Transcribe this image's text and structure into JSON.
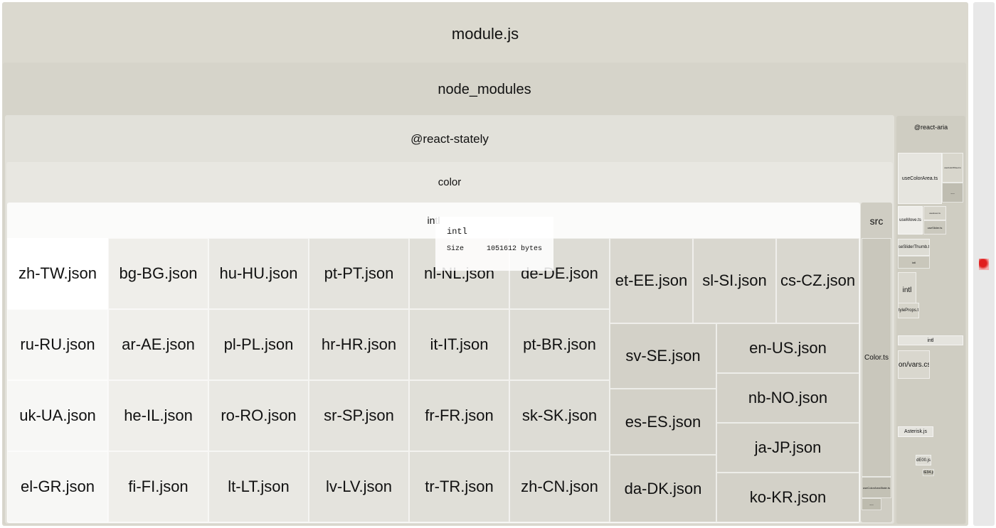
{
  "root": {
    "label": "module.js"
  },
  "node_modules": {
    "label": "node_modules"
  },
  "react_stately": {
    "label": "@react-stately"
  },
  "color": {
    "label": "color"
  },
  "intl": {
    "label": "intl",
    "files": [
      "zh-TW.json",
      "bg-BG.json",
      "hu-HU.json",
      "pt-PT.json",
      "nl-NL.json",
      "de-DE.json",
      "ru-RU.json",
      "ar-AE.json",
      "pl-PL.json",
      "hr-HR.json",
      "it-IT.json",
      "pt-BR.json",
      "uk-UA.json",
      "he-IL.json",
      "ro-RO.json",
      "sr-SP.json",
      "fr-FR.json",
      "sk-SK.json",
      "el-GR.json",
      "fi-FI.json",
      "lt-LT.json",
      "lv-LV.json",
      "tr-TR.json",
      "zh-CN.json",
      "et-EE.json",
      "sl-SI.json",
      "cs-CZ.json",
      "sv-SE.json",
      "es-ES.json",
      "da-DK.json",
      "en-US.json",
      "nb-NO.json",
      "ja-JP.json",
      "ko-KR.json"
    ]
  },
  "src": {
    "label": "src",
    "color_ts": "Color.ts",
    "state": "useColorAreaState.ts",
    "more": "..."
  },
  "react_aria": {
    "label": "@react-aria",
    "items": [
      "useColorArea.ts",
      "useColorWheel.ts",
      "useMove.ts",
      "useHover.ts",
      "useSlider.ts",
      "useSliderThumb.ts",
      "intl",
      "intl",
      "styleProps.ts",
      "intl",
      "icon/vars.css",
      "Asterisk.js",
      "dE00.js",
      "dE94.js",
      "..."
    ]
  },
  "tooltip": {
    "title": "intl",
    "size_label": "Size",
    "size_value": "1051612 bytes"
  }
}
